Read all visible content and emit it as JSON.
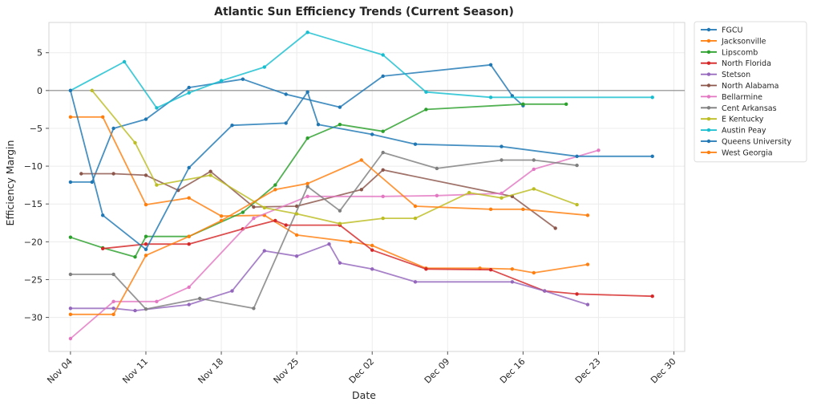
{
  "chart_data": {
    "type": "line",
    "title": "Atlantic Sun Efficiency Trends (Current Season)",
    "xlabel": "Date",
    "ylabel": "Efficiency Margin",
    "x_type": "date",
    "xlim": [
      "2024-11-02",
      "2024-12-31"
    ],
    "ylim": [
      -34.5,
      9.0
    ],
    "x_ticks": [
      {
        "date": "2024-11-04",
        "label": "Nov 04"
      },
      {
        "date": "2024-11-11",
        "label": "Nov 11"
      },
      {
        "date": "2024-11-18",
        "label": "Nov 18"
      },
      {
        "date": "2024-11-25",
        "label": "Nov 25"
      },
      {
        "date": "2024-12-02",
        "label": "Dec 02"
      },
      {
        "date": "2024-12-09",
        "label": "Dec 09"
      },
      {
        "date": "2024-12-16",
        "label": "Dec 16"
      },
      {
        "date": "2024-12-23",
        "label": "Dec 23"
      },
      {
        "date": "2024-12-30",
        "label": "Dec 30"
      }
    ],
    "y_ticks": [
      5,
      0,
      -5,
      -10,
      -15,
      -20,
      -25,
      -30
    ],
    "reference_line_y": 0,
    "grid": true,
    "legend_position": "outside-right",
    "series": [
      {
        "name": "FGCU",
        "color": "#1f77b4",
        "points": [
          [
            "2024-11-04",
            -12.1
          ],
          [
            "2024-11-06",
            -12.1
          ],
          [
            "2024-11-08",
            -5.0
          ],
          [
            "2024-11-11",
            -3.8
          ],
          [
            "2024-11-15",
            0.4
          ],
          [
            "2024-11-20",
            1.5
          ],
          [
            "2024-11-24",
            -0.5
          ],
          [
            "2024-11-29",
            -2.2
          ],
          [
            "2024-12-03",
            1.9
          ],
          [
            "2024-12-13",
            3.4
          ],
          [
            "2024-12-15",
            -0.7
          ],
          [
            "2024-12-16",
            -2.0
          ]
        ]
      },
      {
        "name": "Jacksonville",
        "color": "#ff7f0e",
        "points": [
          [
            "2024-11-04",
            -3.5
          ],
          [
            "2024-11-07",
            -3.5
          ],
          [
            "2024-11-11",
            -15.1
          ],
          [
            "2024-11-15",
            -14.2
          ],
          [
            "2024-11-18",
            -16.6
          ],
          [
            "2024-11-22",
            -16.5
          ],
          [
            "2024-11-25",
            -19.1
          ],
          [
            "2024-11-30",
            -20.0
          ],
          [
            "2024-12-02",
            -20.5
          ],
          [
            "2024-12-07",
            -23.5
          ],
          [
            "2024-12-12",
            -23.5
          ],
          [
            "2024-12-15",
            -23.6
          ],
          [
            "2024-12-17",
            -24.1
          ],
          [
            "2024-12-22",
            -23.0
          ]
        ]
      },
      {
        "name": "Lipscomb",
        "color": "#2ca02c",
        "points": [
          [
            "2024-11-04",
            -19.4
          ],
          [
            "2024-11-07",
            -20.8
          ],
          [
            "2024-11-10",
            -22.0
          ],
          [
            "2024-11-11",
            -19.3
          ],
          [
            "2024-11-15",
            -19.3
          ],
          [
            "2024-11-20",
            -16.1
          ],
          [
            "2024-11-23",
            -12.5
          ],
          [
            "2024-11-26",
            -6.3
          ],
          [
            "2024-11-29",
            -4.5
          ],
          [
            "2024-12-03",
            -5.4
          ],
          [
            "2024-12-07",
            -2.5
          ],
          [
            "2024-12-16",
            -1.8
          ],
          [
            "2024-12-20",
            -1.8
          ]
        ]
      },
      {
        "name": "North Florida",
        "color": "#d62728",
        "points": [
          [
            "2024-11-07",
            -20.9
          ],
          [
            "2024-11-11",
            -20.3
          ],
          [
            "2024-11-15",
            -20.3
          ],
          [
            "2024-11-20",
            -18.3
          ],
          [
            "2024-11-23",
            -17.2
          ],
          [
            "2024-11-24",
            -17.8
          ],
          [
            "2024-11-29",
            -17.8
          ],
          [
            "2024-12-02",
            -21.1
          ],
          [
            "2024-12-07",
            -23.6
          ],
          [
            "2024-12-13",
            -23.7
          ],
          [
            "2024-12-18",
            -26.5
          ],
          [
            "2024-12-21",
            -26.9
          ],
          [
            "2024-12-28",
            -27.2
          ]
        ]
      },
      {
        "name": "Stetson",
        "color": "#9467bd",
        "points": [
          [
            "2024-11-04",
            -28.8
          ],
          [
            "2024-11-08",
            -28.8
          ],
          [
            "2024-11-10",
            -29.1
          ],
          [
            "2024-11-15",
            -28.3
          ],
          [
            "2024-11-19",
            -26.5
          ],
          [
            "2024-11-22",
            -21.2
          ],
          [
            "2024-11-25",
            -21.9
          ],
          [
            "2024-11-28",
            -20.3
          ],
          [
            "2024-11-29",
            -22.8
          ],
          [
            "2024-12-02",
            -23.6
          ],
          [
            "2024-12-06",
            -25.3
          ],
          [
            "2024-12-15",
            -25.3
          ],
          [
            "2024-12-18",
            -26.5
          ],
          [
            "2024-12-22",
            -28.3
          ]
        ]
      },
      {
        "name": "North Alabama",
        "color": "#8c564b",
        "points": [
          [
            "2024-11-05",
            -11.0
          ],
          [
            "2024-11-08",
            -11.0
          ],
          [
            "2024-11-11",
            -11.2
          ],
          [
            "2024-11-14",
            -13.2
          ],
          [
            "2024-11-17",
            -10.7
          ],
          [
            "2024-11-21",
            -15.4
          ],
          [
            "2024-11-25",
            -15.3
          ],
          [
            "2024-12-01",
            -13.1
          ],
          [
            "2024-12-03",
            -10.5
          ],
          [
            "2024-12-15",
            -14.0
          ],
          [
            "2024-12-19",
            -18.2
          ]
        ]
      },
      {
        "name": "Bellarmine",
        "color": "#e377c2",
        "points": [
          [
            "2024-11-04",
            -32.8
          ],
          [
            "2024-11-08",
            -27.9
          ],
          [
            "2024-11-12",
            -27.9
          ],
          [
            "2024-11-15",
            -26.0
          ],
          [
            "2024-11-21",
            -16.9
          ],
          [
            "2024-11-26",
            -14.0
          ],
          [
            "2024-12-03",
            -14.0
          ],
          [
            "2024-12-08",
            -13.9
          ],
          [
            "2024-12-14",
            -13.6
          ],
          [
            "2024-12-17",
            -10.4
          ],
          [
            "2024-12-23",
            -7.9
          ]
        ]
      },
      {
        "name": "Cent Arkansas",
        "color": "#7f7f7f",
        "points": [
          [
            "2024-11-04",
            -24.3
          ],
          [
            "2024-11-08",
            -24.3
          ],
          [
            "2024-11-11",
            -28.9
          ],
          [
            "2024-11-16",
            -27.5
          ],
          [
            "2024-11-21",
            -28.8
          ],
          [
            "2024-11-26",
            -12.7
          ],
          [
            "2024-11-29",
            -15.9
          ],
          [
            "2024-12-03",
            -8.2
          ],
          [
            "2024-12-08",
            -10.3
          ],
          [
            "2024-12-14",
            -9.2
          ],
          [
            "2024-12-17",
            -9.2
          ],
          [
            "2024-12-21",
            -9.9
          ]
        ]
      },
      {
        "name": "E Kentucky",
        "color": "#bcbd22",
        "points": [
          [
            "2024-11-06",
            0.0
          ],
          [
            "2024-11-10",
            -6.9
          ],
          [
            "2024-11-12",
            -12.5
          ],
          [
            "2024-11-17",
            -11.2
          ],
          [
            "2024-11-22",
            -15.5
          ],
          [
            "2024-11-25",
            -16.3
          ],
          [
            "2024-11-29",
            -17.6
          ],
          [
            "2024-12-03",
            -16.9
          ],
          [
            "2024-12-06",
            -16.9
          ],
          [
            "2024-12-11",
            -13.5
          ],
          [
            "2024-12-14",
            -14.2
          ],
          [
            "2024-12-17",
            -13.0
          ],
          [
            "2024-12-21",
            -15.1
          ]
        ]
      },
      {
        "name": "Austin Peay",
        "color": "#17becf",
        "points": [
          [
            "2024-11-04",
            0.0
          ],
          [
            "2024-11-09",
            3.8
          ],
          [
            "2024-11-12",
            -2.3
          ],
          [
            "2024-11-15",
            -0.3
          ],
          [
            "2024-11-18",
            1.3
          ],
          [
            "2024-11-22",
            3.1
          ],
          [
            "2024-11-26",
            7.7
          ],
          [
            "2024-12-03",
            4.7
          ],
          [
            "2024-12-07",
            -0.2
          ],
          [
            "2024-12-13",
            -0.9
          ],
          [
            "2024-12-28",
            -0.9
          ]
        ]
      },
      {
        "name": "Queens University",
        "color": "#1f77b4",
        "points": [
          [
            "2024-11-04",
            0.0
          ],
          [
            "2024-11-07",
            -16.5
          ],
          [
            "2024-11-11",
            -21.0
          ],
          [
            "2024-11-15",
            -10.2
          ],
          [
            "2024-11-19",
            -4.6
          ],
          [
            "2024-11-24",
            -4.3
          ],
          [
            "2024-11-26",
            -0.2
          ],
          [
            "2024-11-27",
            -4.5
          ],
          [
            "2024-12-02",
            -5.8
          ],
          [
            "2024-12-06",
            -7.1
          ],
          [
            "2024-12-14",
            -7.4
          ],
          [
            "2024-12-21",
            -8.7
          ],
          [
            "2024-12-28",
            -8.7
          ]
        ]
      },
      {
        "name": "West Georgia",
        "color": "#ff7f0e",
        "points": [
          [
            "2024-11-04",
            -29.6
          ],
          [
            "2024-11-08",
            -29.6
          ],
          [
            "2024-11-11",
            -21.8
          ],
          [
            "2024-11-15",
            -19.3
          ],
          [
            "2024-11-18",
            -17.2
          ],
          [
            "2024-11-23",
            -13.1
          ],
          [
            "2024-11-26",
            -12.3
          ],
          [
            "2024-12-01",
            -9.2
          ],
          [
            "2024-12-06",
            -15.3
          ],
          [
            "2024-12-13",
            -15.7
          ],
          [
            "2024-12-16",
            -15.7
          ],
          [
            "2024-12-22",
            -16.5
          ]
        ]
      }
    ]
  }
}
